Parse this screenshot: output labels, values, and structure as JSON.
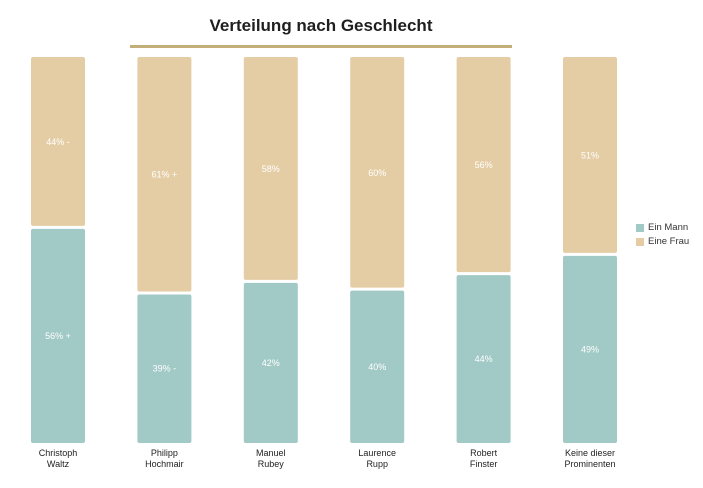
{
  "chart_data": {
    "type": "bar",
    "stacked": true,
    "percent": true,
    "title": "Verteilung nach Geschlecht",
    "categories": [
      "Christoph\nWaltz",
      "Philipp\nHochmair",
      "Manuel\nRubey",
      "Laurence\nRupp",
      "Robert\nFinster",
      "Keine dieser\nProminenten"
    ],
    "series": [
      {
        "name": "Ein Mann",
        "color": "#a1c9c6",
        "values": [
          56,
          39,
          42,
          40,
          44,
          49
        ],
        "labels": [
          "56% +",
          "39% -",
          "42%",
          "40%",
          "44%",
          "49%"
        ]
      },
      {
        "name": "Eine Frau",
        "color": "#e4cda5",
        "values": [
          44,
          61,
          58,
          60,
          56,
          51
        ],
        "labels": [
          "44% -",
          "61% +",
          "58%",
          "60%",
          "56%",
          "51%"
        ]
      }
    ],
    "ylim": [
      0,
      100
    ],
    "legend_position": "right",
    "grid": false
  }
}
